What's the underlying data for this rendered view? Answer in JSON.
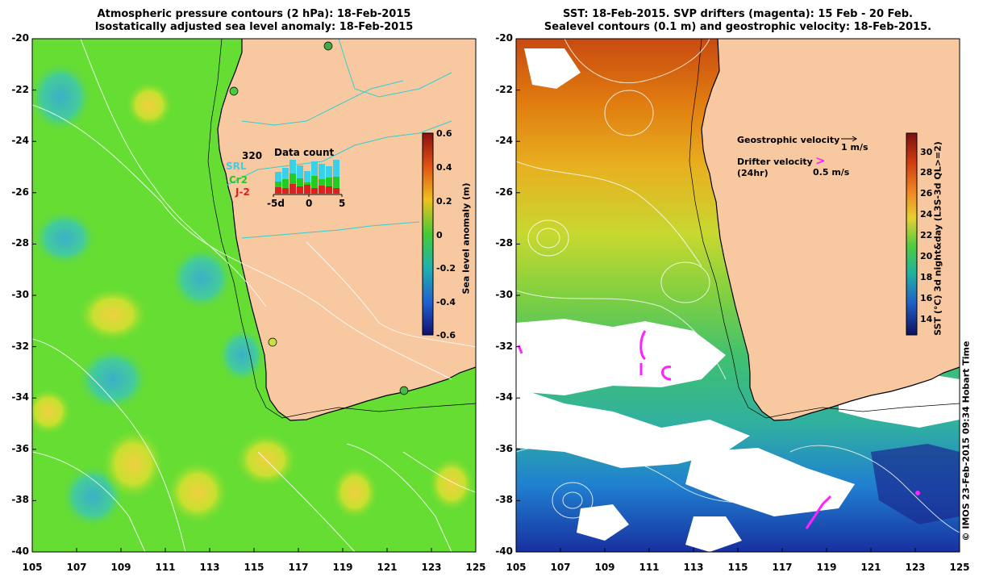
{
  "left_panel": {
    "title_line1": "Atmospheric pressure contours (2 hPa): 18-Feb-2015",
    "title_line2": "Isostatically adjusted sea level anomaly: 18-Feb-2015",
    "colorbar_label": "Sea level anomaly (m)",
    "colorbar_ticks": [
      "0.6",
      "0.4",
      "0.2",
      "0",
      "-0.2",
      "-0.4",
      "-0.6"
    ],
    "inset": {
      "max_label": "320",
      "title": "Data count",
      "legend": [
        "SRL",
        "Cr2",
        "J-2"
      ],
      "legend_colors": [
        "#3ad0e8",
        "#22cc22",
        "#dd2020"
      ],
      "x_ticks": [
        "-5d",
        "0",
        "5"
      ]
    }
  },
  "right_panel": {
    "title_line1": "SST: 18-Feb-2015. SVP drifters (magenta): 15 Feb - 20 Feb.",
    "title_line2": "Sealevel contours (0.1 m) and geostrophic velocity: 18-Feb-2015.",
    "geo_velocity_label": "Geostrophic velocity",
    "geo_velocity_scale": "1 m/s",
    "drifter_label_line1": "Drifter velocity",
    "drifter_label_line2": "(24hr)",
    "drifter_scale": "0.5 m/s",
    "drifter_symbol": ">",
    "colorbar_label": "SST (°C) 3d night&day (L3S-3d QL>=2)",
    "colorbar_ticks": [
      "30",
      "28",
      "26",
      "24",
      "22",
      "20",
      "18",
      "16",
      "14"
    ]
  },
  "credit": "© IMOS 23-Feb-2015 09:34 Hobart Time",
  "lat_ticks": [
    "-20",
    "-22",
    "-24",
    "-26",
    "-28",
    "-30",
    "-32",
    "-34",
    "-36",
    "-38",
    "-40"
  ],
  "lon_ticks": [
    "105",
    "107",
    "109",
    "111",
    "113",
    "115",
    "117",
    "119",
    "121",
    "123",
    "125"
  ],
  "colors": {
    "land": "#f8c8a0",
    "ocean_green": "#66dd33",
    "contour": "#ffffff",
    "coast": "#000000",
    "drifter": "#ff22ff"
  }
}
